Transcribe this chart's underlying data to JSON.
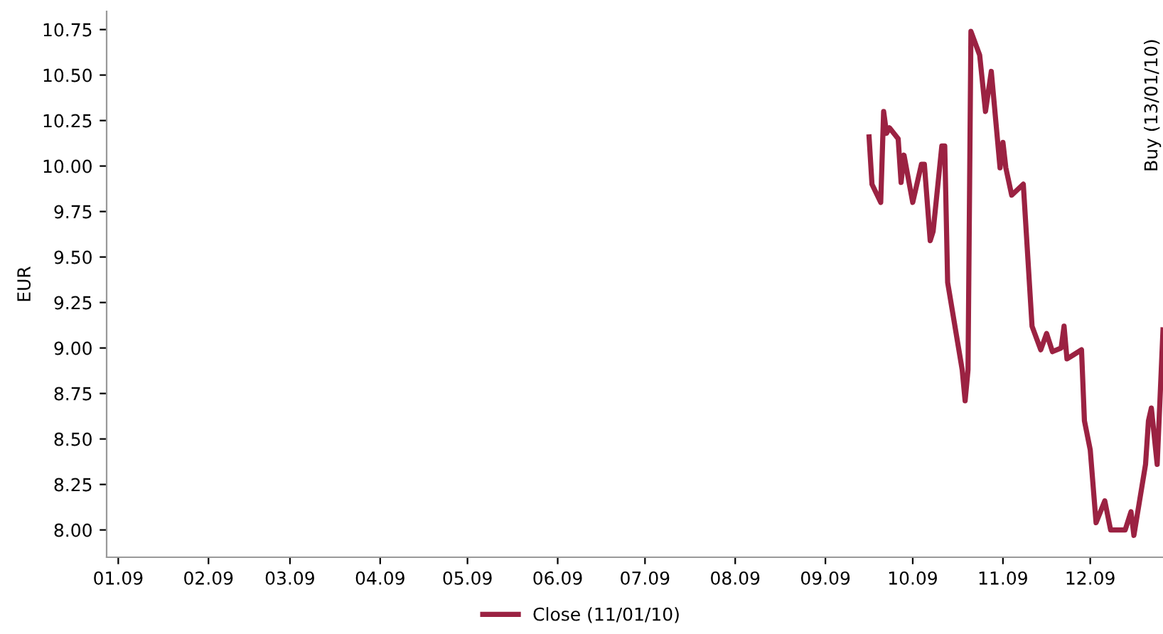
{
  "chart_data": {
    "type": "line",
    "ylabel": "EUR",
    "legend": "bottom",
    "grid": false,
    "marker": "none",
    "line_style": "solid",
    "xlim": [
      "2008-12-28",
      "2009-12-26"
    ],
    "xticks": [
      {
        "value": "2009-01-01",
        "label": "01.09"
      },
      {
        "value": "2009-02-01",
        "label": "02.09"
      },
      {
        "value": "2009-03-01",
        "label": "03.09"
      },
      {
        "value": "2009-04-01",
        "label": "04.09"
      },
      {
        "value": "2009-05-01",
        "label": "05.09"
      },
      {
        "value": "2009-06-01",
        "label": "06.09"
      },
      {
        "value": "2009-07-01",
        "label": "07.09"
      },
      {
        "value": "2009-08-01",
        "label": "08.09"
      },
      {
        "value": "2009-09-01",
        "label": "09.09"
      },
      {
        "value": "2009-10-01",
        "label": "10.09"
      },
      {
        "value": "2009-11-01",
        "label": "11.09"
      },
      {
        "value": "2009-12-01",
        "label": "12.09"
      }
    ],
    "ylim": [
      7.85,
      10.85
    ],
    "yticks": [
      {
        "value": 8,
        "label": "8.00"
      },
      {
        "value": 8.25,
        "label": "8.25"
      },
      {
        "value": 8.5,
        "label": "8.50"
      },
      {
        "value": 8.75,
        "label": "8.75"
      },
      {
        "value": 9,
        "label": "9.00"
      },
      {
        "value": 9.25,
        "label": "9.25"
      },
      {
        "value": 9.5,
        "label": "9.50"
      },
      {
        "value": 9.75,
        "label": "9.75"
      },
      {
        "value": 10,
        "label": "10.00"
      },
      {
        "value": 10.25,
        "label": "10.25"
      },
      {
        "value": 10.5,
        "label": "10.50"
      },
      {
        "value": 10.75,
        "label": "10.75"
      }
    ],
    "annotations": [
      "Buy (13/01/10)"
    ],
    "series": [
      {
        "name": "Close (11/01/10)",
        "color": "#9b2242",
        "x": [
          "2009-09-16",
          "2009-09-17",
          "2009-09-20",
          "2009-09-21",
          "2009-09-22",
          "2009-09-23",
          "2009-09-26",
          "2009-09-27",
          "2009-09-28",
          "2009-10-01",
          "2009-10-04",
          "2009-10-05",
          "2009-10-07",
          "2009-10-08",
          "2009-10-11",
          "2009-10-12",
          "2009-10-13",
          "2009-10-18",
          "2009-10-19",
          "2009-10-20",
          "2009-10-21",
          "2009-10-24",
          "2009-10-26",
          "2009-10-28",
          "2009-10-31",
          "2009-11-01",
          "2009-11-02",
          "2009-11-04",
          "2009-11-08",
          "2009-11-11",
          "2009-11-14",
          "2009-11-16",
          "2009-11-18",
          "2009-11-21",
          "2009-11-22",
          "2009-11-23",
          "2009-11-25",
          "2009-11-28",
          "2009-11-29",
          "2009-12-01",
          "2009-12-03",
          "2009-12-06",
          "2009-12-08",
          "2009-12-13",
          "2009-12-15",
          "2009-12-16",
          "2009-12-20",
          "2009-12-21",
          "2009-12-22",
          "2009-12-24",
          "2009-12-26"
        ],
        "values": [
          10.16,
          9.9,
          9.8,
          10.3,
          10.18,
          10.21,
          10.15,
          9.91,
          10.06,
          9.8,
          10.01,
          10.01,
          9.59,
          9.64,
          10.11,
          10.11,
          9.36,
          8.88,
          8.71,
          8.88,
          10.74,
          10.61,
          10.3,
          10.52,
          9.99,
          10.13,
          9.99,
          9.84,
          9.9,
          9.12,
          8.99,
          9.08,
          8.98,
          9.0,
          9.12,
          8.94,
          8.96,
          8.99,
          8.6,
          8.44,
          8.04,
          8.16,
          8.0,
          8.0,
          8.1,
          7.97,
          8.36,
          8.6,
          8.67,
          8.36,
          9.1
        ]
      }
    ]
  }
}
